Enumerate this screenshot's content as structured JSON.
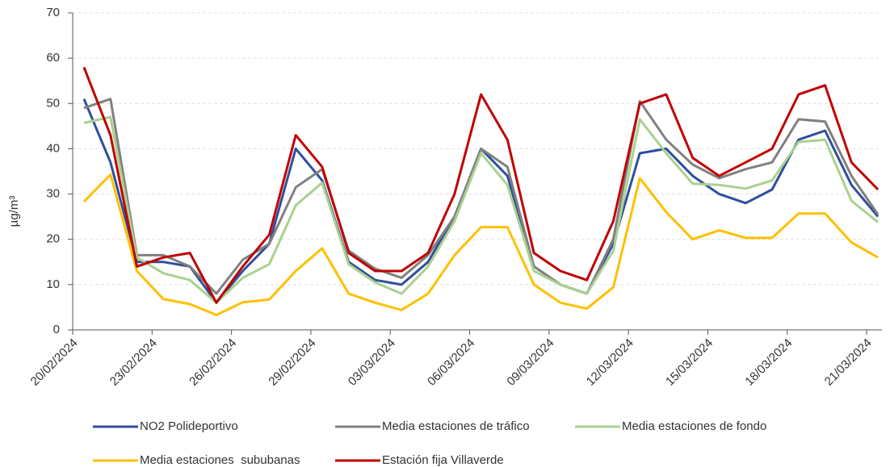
{
  "chart_data": {
    "type": "line",
    "y_label": "µg/m³",
    "categories": [
      "20/02/2024",
      null,
      null,
      "23/02/2024",
      null,
      null,
      "26/02/2024",
      null,
      null,
      "29/02/2024",
      null,
      null,
      "03/03/2024",
      null,
      null,
      "06/03/2024",
      null,
      null,
      "09/03/2024",
      null,
      null,
      "12/03/2024",
      null,
      null,
      "15/03/2024",
      null,
      null,
      "18/03/2024",
      null,
      null,
      "21/03/2024"
    ],
    "series": [
      {
        "name": "NO2 Polideportivo",
        "color": "#2f4f9c",
        "values": [
          51,
          37,
          15,
          15,
          14,
          6,
          13,
          19,
          40,
          33,
          15,
          11,
          10,
          15,
          25,
          40,
          34,
          14,
          10,
          8,
          19,
          39,
          40,
          34,
          30,
          28,
          31,
          42,
          44,
          32,
          25
        ]
      },
      {
        "name": "Media estaciones de tráfico",
        "color": "#808080",
        "values": [
          49,
          51,
          16.5,
          16.5,
          14,
          8,
          15.5,
          19,
          31.5,
          35.5,
          17.5,
          13.5,
          11.5,
          16.5,
          25,
          40,
          36,
          14,
          10,
          8,
          20,
          50.5,
          42,
          36.5,
          33.5,
          35.5,
          37,
          46.5,
          46,
          34,
          25.5
        ]
      },
      {
        "name": "Media estaciones de fondo",
        "color": "#a9d18e",
        "values": [
          45.7,
          47,
          16,
          12.5,
          11,
          6,
          11.5,
          14.5,
          27.5,
          32.5,
          14.5,
          10.5,
          8,
          14,
          24,
          39,
          32,
          13,
          10,
          8,
          17.5,
          46.5,
          39,
          32.3,
          32,
          31.2,
          33,
          41.5,
          42,
          28.5,
          23.8
        ]
      },
      {
        "name": "Media estaciones  sububanas",
        "color": "#ffc000",
        "values": [
          28.3,
          34.3,
          13,
          6.8,
          5.7,
          3.3,
          6.1,
          6.7,
          13,
          18,
          8,
          6,
          4.4,
          8,
          16.5,
          22.7,
          22.7,
          10,
          6,
          4.7,
          9.4,
          33.5,
          26,
          20,
          22,
          20.3,
          20.3,
          25.7,
          25.7,
          19.3,
          16
        ]
      },
      {
        "name": "Estación fija Villaverde",
        "color": "#c00000",
        "values": [
          58,
          43,
          14,
          16,
          17,
          6,
          14,
          21,
          43,
          36,
          17,
          13,
          13,
          17,
          30,
          52,
          42,
          17,
          13,
          11,
          24,
          50,
          52,
          38,
          34,
          37,
          40,
          52,
          54,
          37,
          31
        ]
      }
    ],
    "ylim": [
      0,
      70
    ],
    "yticks": [
      0,
      10,
      20,
      30,
      40,
      50,
      60,
      70
    ],
    "grid": true
  }
}
